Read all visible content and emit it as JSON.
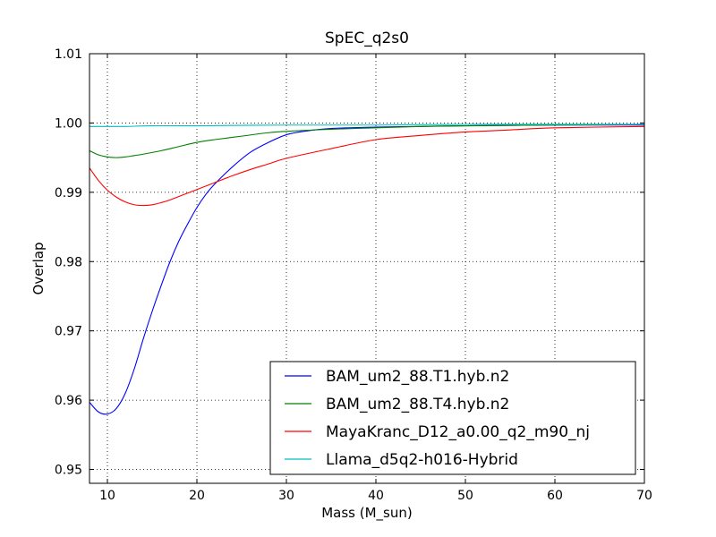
{
  "chart_data": {
    "type": "line",
    "title": "SpEC_q2s0",
    "xlabel": "Mass (M_sun)",
    "ylabel": "Overlap",
    "xlim": [
      8,
      70
    ],
    "ylim": [
      0.948,
      1.01
    ],
    "xticks": [
      10,
      20,
      30,
      40,
      50,
      60,
      70
    ],
    "xtick_labels": [
      "10",
      "20",
      "30",
      "40",
      "50",
      "60",
      "70"
    ],
    "yticks": [
      0.95,
      0.96,
      0.97,
      0.98,
      0.99,
      1.0,
      1.01
    ],
    "ytick_labels": [
      "0.95",
      "0.96",
      "0.97",
      "0.98",
      "0.99",
      "1.00",
      "1.01"
    ],
    "grid": true,
    "legend_position": "lower-right",
    "series": [
      {
        "name": "BAM_um2_88.T1.hyb.n2",
        "color": "#0000ff",
        "x": [
          8,
          9,
          10,
          11,
          12,
          13,
          14,
          15,
          16,
          17,
          18,
          19,
          20,
          21,
          22,
          24,
          26,
          28,
          30,
          32,
          35,
          40,
          45,
          50,
          60,
          70
        ],
        "y": [
          0.9597,
          0.9583,
          0.958,
          0.9588,
          0.961,
          0.9645,
          0.9688,
          0.9728,
          0.9765,
          0.98,
          0.983,
          0.9855,
          0.9878,
          0.9897,
          0.9912,
          0.9937,
          0.9958,
          0.9972,
          0.9983,
          0.9988,
          0.9992,
          0.9994,
          0.9995,
          0.9996,
          0.9997,
          0.9997
        ]
      },
      {
        "name": "BAM_um2_88.T4.hyb.n2",
        "color": "#008000",
        "x": [
          8,
          9,
          10,
          11,
          12,
          13,
          14,
          16,
          18,
          20,
          22,
          25,
          28,
          30,
          35,
          40,
          45,
          50,
          60,
          70
        ],
        "y": [
          0.996,
          0.9954,
          0.9951,
          0.995,
          0.9951,
          0.9953,
          0.9955,
          0.996,
          0.9966,
          0.9972,
          0.9976,
          0.9981,
          0.9986,
          0.9988,
          0.9991,
          0.9993,
          0.9995,
          0.9996,
          0.9997,
          0.9998
        ]
      },
      {
        "name": "MayaKranc_D12_a0.00_q2_m90_nj",
        "color": "#ff0000",
        "x": [
          8,
          9,
          10,
          11,
          12,
          13,
          14,
          15,
          16,
          17,
          18,
          19,
          20,
          22,
          24,
          26,
          28,
          30,
          35,
          40,
          45,
          50,
          55,
          60,
          70
        ],
        "y": [
          0.9935,
          0.9917,
          0.9903,
          0.9893,
          0.9886,
          0.9882,
          0.9881,
          0.9882,
          0.9885,
          0.9889,
          0.9894,
          0.9899,
          0.9904,
          0.9914,
          0.9924,
          0.9933,
          0.9941,
          0.9949,
          0.9963,
          0.9976,
          0.9982,
          0.9987,
          0.999,
          0.9993,
          0.9995
        ]
      },
      {
        "name": "Llama_d5q2-h016-Hybrid",
        "color": "#00bfbf",
        "x": [
          8,
          10,
          12,
          15,
          20,
          30,
          40,
          50,
          60,
          70
        ],
        "y": [
          0.9995,
          0.9995,
          0.9995,
          0.9996,
          0.9996,
          0.9997,
          0.9997,
          0.9998,
          0.9998,
          0.9998
        ]
      }
    ]
  }
}
